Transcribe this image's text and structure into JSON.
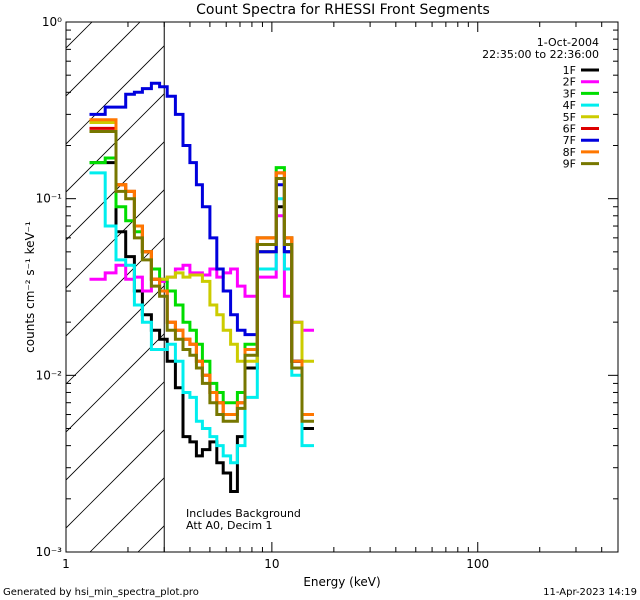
{
  "chart_data": {
    "type": "line",
    "title": "Count Spectra for RHESSI Front Segments",
    "xlabel": "Energy (keV)",
    "ylabel": "counts cm⁻² s⁻¹ keV⁻¹",
    "xscale": "log",
    "yscale": "log",
    "xlim": [
      1,
      480
    ],
    "ylim": [
      0.001,
      1
    ],
    "x_ticks": [
      {
        "v": 1,
        "label": "1"
      },
      {
        "v": 10,
        "label": "10"
      },
      {
        "v": 100,
        "label": "100"
      }
    ],
    "y_ticks": [
      {
        "v": 0.001,
        "label": "10⁻³"
      },
      {
        "v": 0.01,
        "label": "10⁻²"
      },
      {
        "v": 0.1,
        "label": "10⁻¹"
      },
      {
        "v": 1,
        "label": "10⁰"
      }
    ],
    "date": "1-Oct-2004",
    "time_range": "22:35:00 to 22:36:00",
    "shaded_region_max_kev": 3,
    "annotations": [
      "Includes Background",
      "Att A0, Decim 1"
    ],
    "series": [
      {
        "name": "1F",
        "color": "#000000",
        "values": [
          0.16,
          0.16,
          0.065,
          0.047,
          0.03,
          0.022,
          0.018,
          0.016,
          0.012,
          0.0085,
          0.0045,
          0.0042,
          0.0035,
          0.0038,
          0.0042,
          0.0032,
          0.0028,
          0.0022,
          0.0045,
          0.011,
          0.05,
          0.09,
          0.05,
          0.012,
          0.005
        ]
      },
      {
        "name": "2F",
        "color": "#ff00ff",
        "values": [
          0.035,
          0.038,
          0.042,
          0.035,
          0.036,
          0.03,
          0.035,
          0.034,
          0.036,
          0.04,
          0.042,
          0.038,
          0.038,
          0.037,
          0.04,
          0.036,
          0.038,
          0.04,
          0.032,
          0.028,
          0.036,
          0.08,
          0.028,
          0.02,
          0.018
        ]
      },
      {
        "name": "3F",
        "color": "#00dd00",
        "values": [
          0.16,
          0.17,
          0.09,
          0.075,
          0.065,
          0.05,
          0.04,
          0.035,
          0.03,
          0.025,
          0.02,
          0.018,
          0.015,
          0.012,
          0.009,
          0.008,
          0.007,
          0.007,
          0.008,
          0.015,
          0.06,
          0.15,
          0.06,
          0.012,
          0.006
        ]
      },
      {
        "name": "4F",
        "color": "#00eeee",
        "values": [
          0.14,
          0.07,
          0.045,
          0.042,
          0.025,
          0.02,
          0.014,
          0.014,
          0.015,
          0.012,
          0.008,
          0.0075,
          0.0055,
          0.005,
          0.0045,
          0.004,
          0.0035,
          0.0032,
          0.004,
          0.0075,
          0.04,
          0.1,
          0.04,
          0.01,
          0.004
        ]
      },
      {
        "name": "5F",
        "color": "#cccc00",
        "values": [
          0.27,
          0.27,
          0.12,
          0.11,
          0.07,
          0.05,
          0.035,
          0.035,
          0.036,
          0.038,
          0.036,
          0.037,
          0.037,
          0.034,
          0.025,
          0.022,
          0.018,
          0.015,
          0.012,
          0.012,
          0.05,
          0.13,
          0.06,
          0.02,
          0.012
        ]
      },
      {
        "name": "6F",
        "color": "#dd0000",
        "values": [
          0.25,
          0.25,
          0.12,
          0.11,
          0.07,
          0.05,
          0.035,
          0.03,
          0.02,
          0.018,
          0.016,
          0.015,
          0.012,
          0.01,
          0.008,
          0.007,
          0.006,
          0.006,
          0.007,
          0.014,
          0.06,
          0.14,
          0.06,
          0.012,
          0.006
        ]
      },
      {
        "name": "7F",
        "color": "#0000dd",
        "values": [
          0.3,
          0.33,
          0.33,
          0.39,
          0.4,
          0.42,
          0.45,
          0.43,
          0.38,
          0.3,
          0.2,
          0.16,
          0.12,
          0.09,
          0.06,
          0.04,
          0.03,
          0.022,
          0.018,
          0.017,
          0.05,
          0.12,
          0.05,
          0.012,
          0.006
        ]
      },
      {
        "name": "8F",
        "color": "#ff7700",
        "values": [
          0.28,
          0.28,
          0.12,
          0.11,
          0.07,
          0.05,
          0.035,
          0.03,
          0.02,
          0.018,
          0.016,
          0.015,
          0.012,
          0.01,
          0.008,
          0.007,
          0.006,
          0.006,
          0.007,
          0.014,
          0.06,
          0.14,
          0.06,
          0.012,
          0.006
        ]
      },
      {
        "name": "9F",
        "color": "#777700",
        "values": [
          0.24,
          0.24,
          0.11,
          0.1,
          0.06,
          0.045,
          0.032,
          0.028,
          0.018,
          0.016,
          0.014,
          0.013,
          0.011,
          0.009,
          0.007,
          0.006,
          0.0055,
          0.0055,
          0.0065,
          0.013,
          0.055,
          0.13,
          0.055,
          0.011,
          0.0055
        ]
      }
    ],
    "x": [
      1.3,
      1.55,
      1.75,
      1.95,
      2.15,
      2.35,
      2.6,
      2.85,
      3.1,
      3.4,
      3.7,
      4.0,
      4.3,
      4.6,
      5.0,
      5.4,
      5.8,
      6.3,
      6.8,
      7.4,
      8.5,
      10.5,
      11.5,
      12.5,
      14
    ]
  },
  "footer": {
    "generated_by": "Generated by hsi_min_spectra_plot.pro",
    "timestamp": "11-Apr-2023 14:19"
  }
}
